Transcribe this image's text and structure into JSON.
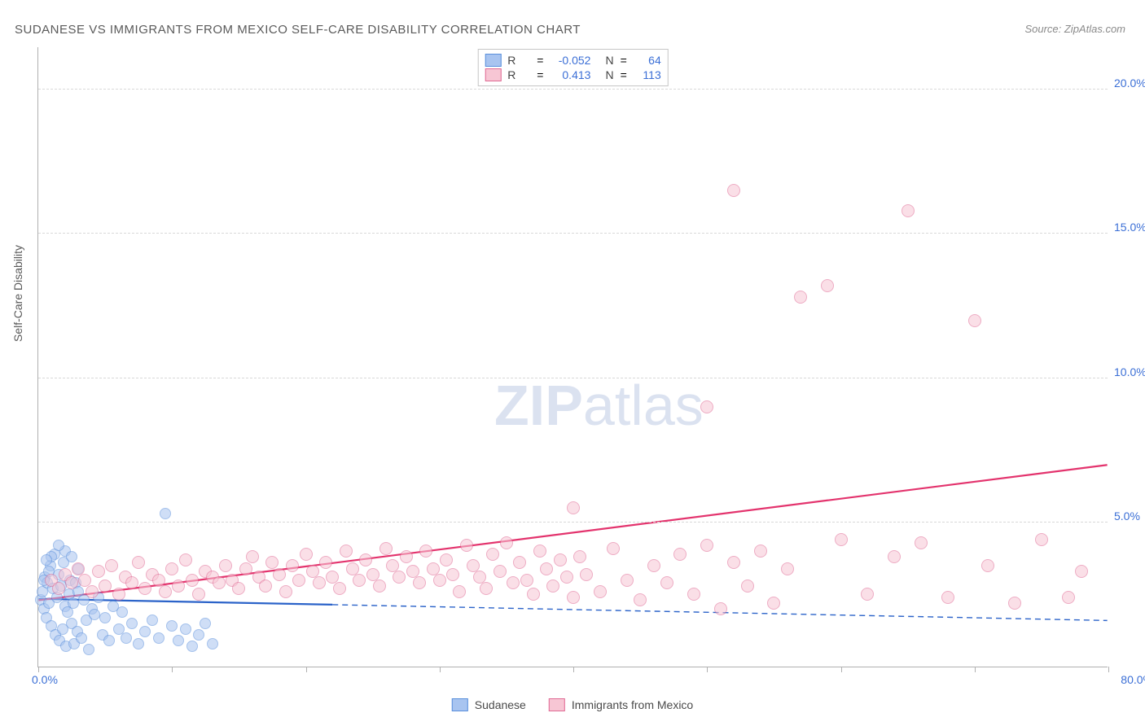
{
  "title": "SUDANESE VS IMMIGRANTS FROM MEXICO SELF-CARE DISABILITY CORRELATION CHART",
  "source": "Source: ZipAtlas.com",
  "y_axis_label": "Self-Care Disability",
  "watermark": {
    "bold": "ZIP",
    "rest": "atlas"
  },
  "axes": {
    "xlim": [
      0,
      80
    ],
    "ylim": [
      0,
      21.5
    ],
    "x_origin_label": "0.0%",
    "x_max_label": "80.0%",
    "x_ticks": [
      0,
      10,
      20,
      30,
      40,
      50,
      60,
      70,
      80
    ],
    "y_gridlines": [
      {
        "v": 5,
        "label": "5.0%"
      },
      {
        "v": 10,
        "label": "10.0%"
      },
      {
        "v": 15,
        "label": "15.0%"
      },
      {
        "v": 20,
        "label": "20.0%"
      }
    ]
  },
  "colors": {
    "series1_fill": "#a8c4f0",
    "series1_stroke": "#5a8fdc",
    "series2_fill": "#f7c6d4",
    "series2_stroke": "#e06a94",
    "trend1": "#2b63c9",
    "trend2": "#e3336d",
    "text_axis": "#5a5a5a",
    "tick_value": "#3b6fd6",
    "grid": "#d8d8d8",
    "border": "#b0b0b0"
  },
  "series": [
    {
      "name": "Sudanese",
      "R": "-0.052",
      "N": "64",
      "fill": "#a8c4f0",
      "stroke": "#5a8fdc",
      "marker_radius": 7,
      "fill_opacity": 0.55,
      "trend": {
        "x1": 0,
        "y1": 2.35,
        "x2": 22,
        "y2": 2.15,
        "color": "#2b63c9",
        "width": 2.2,
        "dash": "none",
        "ext_x2": 80,
        "ext_y2": 1.6,
        "ext_dash": "7 5"
      },
      "points": [
        [
          0.2,
          2.3
        ],
        [
          0.3,
          2.6
        ],
        [
          0.4,
          2.0
        ],
        [
          0.5,
          3.1
        ],
        [
          0.6,
          1.7
        ],
        [
          0.7,
          2.9
        ],
        [
          0.8,
          2.2
        ],
        [
          0.9,
          3.5
        ],
        [
          1.0,
          1.4
        ],
        [
          1.1,
          2.7
        ],
        [
          1.2,
          3.9
        ],
        [
          1.3,
          1.1
        ],
        [
          1.4,
          2.4
        ],
        [
          1.5,
          3.2
        ],
        [
          1.6,
          0.9
        ],
        [
          1.7,
          2.8
        ],
        [
          1.8,
          1.3
        ],
        [
          1.9,
          3.6
        ],
        [
          2.0,
          2.1
        ],
        [
          2.1,
          0.7
        ],
        [
          2.2,
          1.9
        ],
        [
          2.3,
          2.5
        ],
        [
          2.4,
          3.0
        ],
        [
          2.5,
          1.5
        ],
        [
          2.6,
          2.2
        ],
        [
          2.7,
          0.8
        ],
        [
          2.8,
          2.9
        ],
        [
          2.9,
          1.2
        ],
        [
          3.0,
          2.6
        ],
        [
          3.2,
          1.0
        ],
        [
          3.4,
          2.3
        ],
        [
          3.6,
          1.6
        ],
        [
          3.8,
          0.6
        ],
        [
          4.0,
          2.0
        ],
        [
          4.2,
          1.8
        ],
        [
          4.5,
          2.4
        ],
        [
          4.8,
          1.1
        ],
        [
          5.0,
          1.7
        ],
        [
          5.3,
          0.9
        ],
        [
          5.6,
          2.1
        ],
        [
          6.0,
          1.3
        ],
        [
          6.3,
          1.9
        ],
        [
          6.6,
          1.0
        ],
        [
          7.0,
          1.5
        ],
        [
          7.5,
          0.8
        ],
        [
          8.0,
          1.2
        ],
        [
          8.5,
          1.6
        ],
        [
          9.0,
          1.0
        ],
        [
          9.5,
          5.3
        ],
        [
          10.0,
          1.4
        ],
        [
          10.5,
          0.9
        ],
        [
          11.0,
          1.3
        ],
        [
          11.5,
          0.7
        ],
        [
          12.0,
          1.1
        ],
        [
          12.5,
          1.5
        ],
        [
          13.0,
          0.8
        ],
        [
          2.0,
          4.0
        ],
        [
          2.5,
          3.8
        ],
        [
          3.0,
          3.4
        ],
        [
          1.0,
          3.8
        ],
        [
          1.5,
          4.2
        ],
        [
          0.8,
          3.3
        ],
        [
          0.6,
          3.7
        ],
        [
          0.4,
          3.0
        ]
      ]
    },
    {
      "name": "Immigrants from Mexico",
      "R": "0.413",
      "N": "113",
      "fill": "#f7c6d4",
      "stroke": "#e06a94",
      "marker_radius": 8,
      "fill_opacity": 0.55,
      "trend": {
        "x1": 0,
        "y1": 2.3,
        "x2": 80,
        "y2": 7.0,
        "color": "#e3336d",
        "width": 2.2,
        "dash": "none"
      },
      "points": [
        [
          1.0,
          3.0
        ],
        [
          1.5,
          2.7
        ],
        [
          2.0,
          3.2
        ],
        [
          2.5,
          2.9
        ],
        [
          3.0,
          3.4
        ],
        [
          3.5,
          3.0
        ],
        [
          4.0,
          2.6
        ],
        [
          4.5,
          3.3
        ],
        [
          5.0,
          2.8
        ],
        [
          5.5,
          3.5
        ],
        [
          6.0,
          2.5
        ],
        [
          6.5,
          3.1
        ],
        [
          7.0,
          2.9
        ],
        [
          7.5,
          3.6
        ],
        [
          8.0,
          2.7
        ],
        [
          8.5,
          3.2
        ],
        [
          9.0,
          3.0
        ],
        [
          9.5,
          2.6
        ],
        [
          10.0,
          3.4
        ],
        [
          10.5,
          2.8
        ],
        [
          11.0,
          3.7
        ],
        [
          11.5,
          3.0
        ],
        [
          12.0,
          2.5
        ],
        [
          12.5,
          3.3
        ],
        [
          13.0,
          3.1
        ],
        [
          13.5,
          2.9
        ],
        [
          14.0,
          3.5
        ],
        [
          14.5,
          3.0
        ],
        [
          15.0,
          2.7
        ],
        [
          15.5,
          3.4
        ],
        [
          16.0,
          3.8
        ],
        [
          16.5,
          3.1
        ],
        [
          17.0,
          2.8
        ],
        [
          17.5,
          3.6
        ],
        [
          18.0,
          3.2
        ],
        [
          18.5,
          2.6
        ],
        [
          19.0,
          3.5
        ],
        [
          19.5,
          3.0
        ],
        [
          20.0,
          3.9
        ],
        [
          20.5,
          3.3
        ],
        [
          21.0,
          2.9
        ],
        [
          21.5,
          3.6
        ],
        [
          22.0,
          3.1
        ],
        [
          22.5,
          2.7
        ],
        [
          23.0,
          4.0
        ],
        [
          23.5,
          3.4
        ],
        [
          24.0,
          3.0
        ],
        [
          24.5,
          3.7
        ],
        [
          25.0,
          3.2
        ],
        [
          25.5,
          2.8
        ],
        [
          26.0,
          4.1
        ],
        [
          26.5,
          3.5
        ],
        [
          27.0,
          3.1
        ],
        [
          27.5,
          3.8
        ],
        [
          28.0,
          3.3
        ],
        [
          28.5,
          2.9
        ],
        [
          29.0,
          4.0
        ],
        [
          29.5,
          3.4
        ],
        [
          30.0,
          3.0
        ],
        [
          30.5,
          3.7
        ],
        [
          31.0,
          3.2
        ],
        [
          31.5,
          2.6
        ],
        [
          32.0,
          4.2
        ],
        [
          32.5,
          3.5
        ],
        [
          33.0,
          3.1
        ],
        [
          33.5,
          2.7
        ],
        [
          34.0,
          3.9
        ],
        [
          34.5,
          3.3
        ],
        [
          35.0,
          4.3
        ],
        [
          35.5,
          2.9
        ],
        [
          36.0,
          3.6
        ],
        [
          36.5,
          3.0
        ],
        [
          37.0,
          2.5
        ],
        [
          37.5,
          4.0
        ],
        [
          38.0,
          3.4
        ],
        [
          38.5,
          2.8
        ],
        [
          39.0,
          3.7
        ],
        [
          39.5,
          3.1
        ],
        [
          40.0,
          2.4
        ],
        [
          40.5,
          3.8
        ],
        [
          41.0,
          3.2
        ],
        [
          42.0,
          2.6
        ],
        [
          43.0,
          4.1
        ],
        [
          44.0,
          3.0
        ],
        [
          45.0,
          2.3
        ],
        [
          46.0,
          3.5
        ],
        [
          47.0,
          2.9
        ],
        [
          48.0,
          3.9
        ],
        [
          49.0,
          2.5
        ],
        [
          50.0,
          4.2
        ],
        [
          51.0,
          2.0
        ],
        [
          52.0,
          3.6
        ],
        [
          53.0,
          2.8
        ],
        [
          54.0,
          4.0
        ],
        [
          55.0,
          2.2
        ],
        [
          56.0,
          3.4
        ],
        [
          40.0,
          5.5
        ],
        [
          50.0,
          9.0
        ],
        [
          52.0,
          16.5
        ],
        [
          57.0,
          12.8
        ],
        [
          59.0,
          13.2
        ],
        [
          60.0,
          4.4
        ],
        [
          62.0,
          2.5
        ],
        [
          64.0,
          3.8
        ],
        [
          65.0,
          15.8
        ],
        [
          66.0,
          4.3
        ],
        [
          68.0,
          2.4
        ],
        [
          70.0,
          12.0
        ],
        [
          71.0,
          3.5
        ],
        [
          73.0,
          2.2
        ],
        [
          75.0,
          4.4
        ],
        [
          77.0,
          2.4
        ],
        [
          78.0,
          3.3
        ]
      ]
    }
  ],
  "bottom_legend": [
    {
      "label": "Sudanese",
      "fill": "#a8c4f0",
      "stroke": "#5a8fdc"
    },
    {
      "label": "Immigrants from Mexico",
      "fill": "#f7c6d4",
      "stroke": "#e06a94"
    }
  ],
  "stats_legend_labels": {
    "r": "R",
    "eq": "=",
    "n": "N"
  }
}
